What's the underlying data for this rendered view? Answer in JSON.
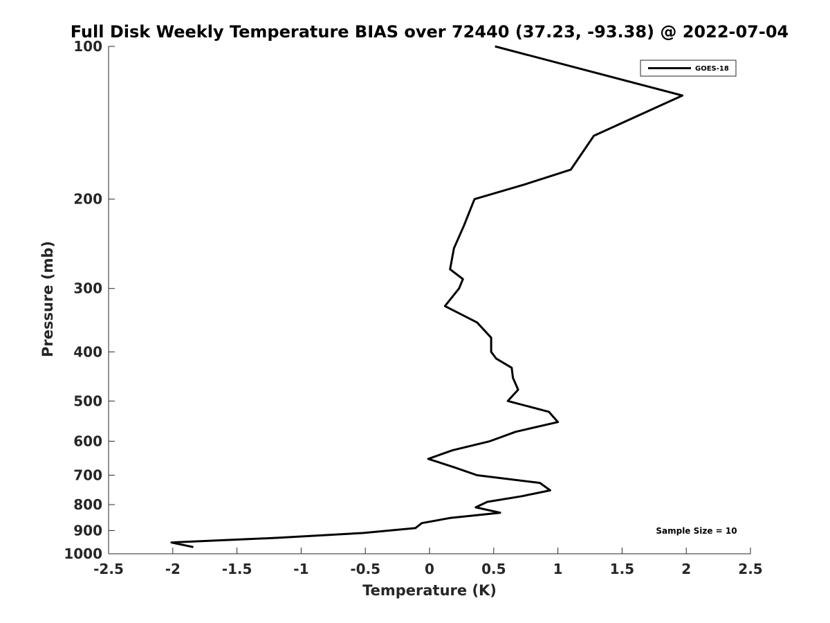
{
  "chart_data": {
    "type": "line",
    "title": "Full Disk Weekly Temperature BIAS over 72440 (37.23, -93.38) @ 2022-07-04",
    "xlabel": "Temperature (K)",
    "ylabel": "Pressure (mb)",
    "xlim": [
      -2.5,
      2.5
    ],
    "ylim": [
      100,
      1000
    ],
    "y_scale": "log",
    "y_reversed": true,
    "x_ticks": [
      -2.5,
      -2,
      -1.5,
      -1,
      -0.5,
      0,
      0.5,
      1,
      1.5,
      2,
      2.5
    ],
    "x_tick_labels": [
      "-2.5",
      "-2",
      "-1.5",
      "-1",
      "-0.5",
      "0",
      "0.5",
      "1",
      "1.5",
      "2",
      "2.5"
    ],
    "y_ticks": [
      100,
      200,
      300,
      400,
      500,
      600,
      700,
      800,
      900,
      1000
    ],
    "y_tick_labels": [
      "100",
      "200",
      "300",
      "400",
      "500",
      "600",
      "700",
      "800",
      "900",
      "1000"
    ],
    "grid": false,
    "legend": {
      "placement": "top-right"
    },
    "annotation": "Sample Size = 10",
    "series": [
      {
        "name": "GOES-18",
        "color": "#000000",
        "points": [
          {
            "x": 0.51,
            "y": 100
          },
          {
            "x": 1.97,
            "y": 125
          },
          {
            "x": 1.28,
            "y": 150
          },
          {
            "x": 1.1,
            "y": 175
          },
          {
            "x": 0.73,
            "y": 187.5
          },
          {
            "x": 0.35,
            "y": 200
          },
          {
            "x": 0.27,
            "y": 225
          },
          {
            "x": 0.19,
            "y": 250
          },
          {
            "x": 0.16,
            "y": 275
          },
          {
            "x": 0.26,
            "y": 287.5
          },
          {
            "x": 0.23,
            "y": 300
          },
          {
            "x": 0.12,
            "y": 325
          },
          {
            "x": 0.37,
            "y": 350
          },
          {
            "x": 0.48,
            "y": 375
          },
          {
            "x": 0.48,
            "y": 400
          },
          {
            "x": 0.52,
            "y": 412.5
          },
          {
            "x": 0.64,
            "y": 430
          },
          {
            "x": 0.65,
            "y": 450
          },
          {
            "x": 0.69,
            "y": 475
          },
          {
            "x": 0.61,
            "y": 500
          },
          {
            "x": 0.93,
            "y": 525
          },
          {
            "x": 1.0,
            "y": 550
          },
          {
            "x": 0.67,
            "y": 575
          },
          {
            "x": 0.47,
            "y": 600
          },
          {
            "x": 0.18,
            "y": 625
          },
          {
            "x": -0.01,
            "y": 650
          },
          {
            "x": 0.19,
            "y": 675
          },
          {
            "x": 0.37,
            "y": 700
          },
          {
            "x": 0.86,
            "y": 725
          },
          {
            "x": 0.94,
            "y": 750
          },
          {
            "x": 0.72,
            "y": 770
          },
          {
            "x": 0.45,
            "y": 790
          },
          {
            "x": 0.36,
            "y": 810
          },
          {
            "x": 0.55,
            "y": 830
          },
          {
            "x": 0.16,
            "y": 850
          },
          {
            "x": -0.06,
            "y": 870
          },
          {
            "x": -0.11,
            "y": 890
          },
          {
            "x": -0.52,
            "y": 910
          },
          {
            "x": -1.18,
            "y": 930
          },
          {
            "x": -2.01,
            "y": 950
          },
          {
            "x": -1.84,
            "y": 970
          }
        ]
      }
    ]
  }
}
